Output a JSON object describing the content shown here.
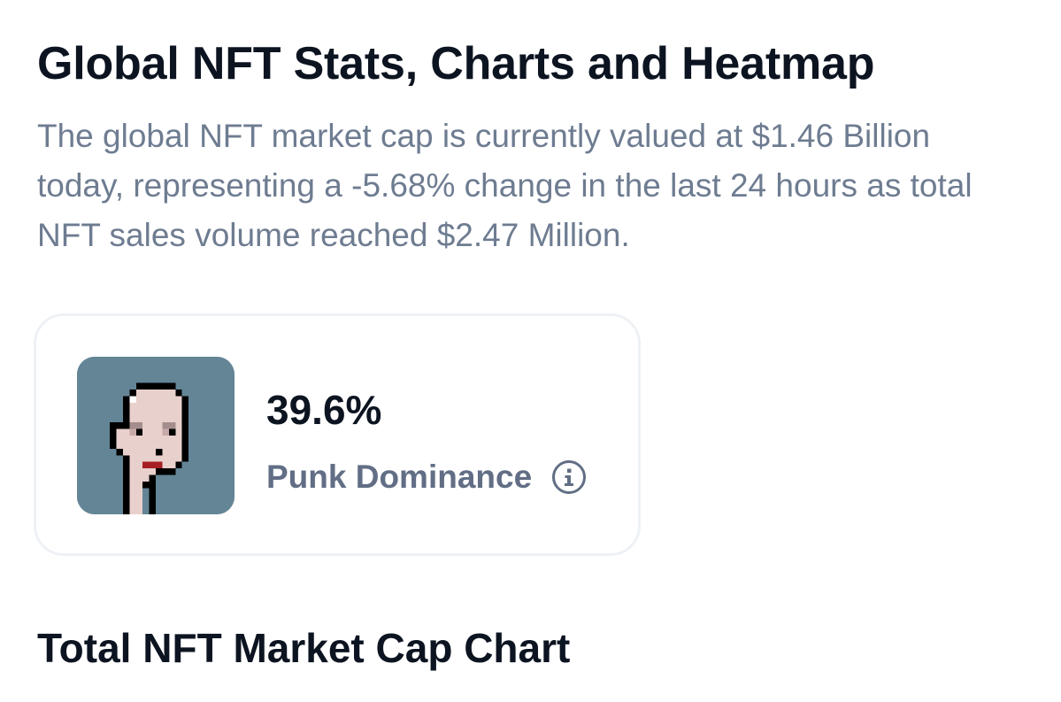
{
  "header": {
    "title": "Global NFT Stats, Charts and Heatmap",
    "description": "The global NFT market cap is currently valued at $1.46 Billion today, representing a -5.68% change in the last 24 hours as total NFT sales volume reached $2.47 Million."
  },
  "dominance_card": {
    "avatar_icon": "cryptopunk-avatar-icon",
    "value": "39.6%",
    "label": "Punk Dominance",
    "info_icon": "info-icon"
  },
  "section": {
    "title": "Total NFT Market Cap Chart"
  },
  "colors": {
    "title_text": "#0d1421",
    "muted_text": "#6e7c91",
    "label_text": "#616e85",
    "card_border": "#eef1f5",
    "avatar_background": "#638596"
  }
}
